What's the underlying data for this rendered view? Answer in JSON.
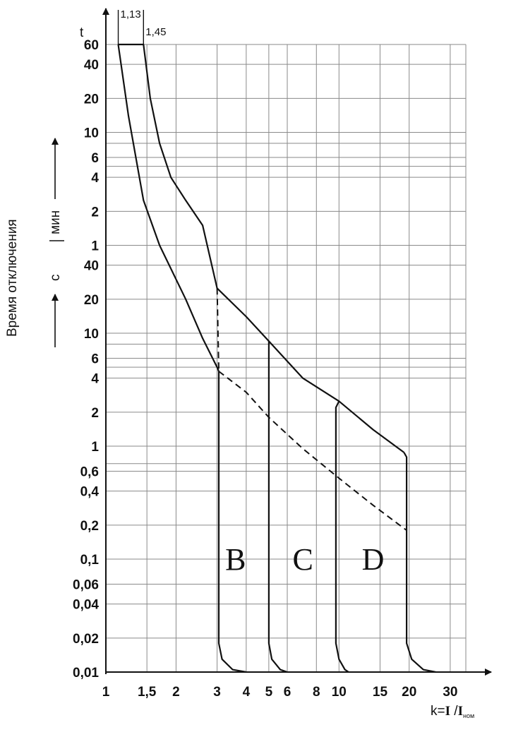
{
  "chart_data": {
    "type": "line",
    "title": "",
    "ylabel": "Время отключения",
    "ylabel_units": {
      "seconds": "с",
      "minutes": "мин"
    },
    "y_axis_symbol": "t",
    "xlabel_parts": {
      "prefix": "k=",
      "numerator": "I",
      "slash": " /",
      "denominator": "I",
      "denominator_sub": "ном"
    },
    "x_scale": "log",
    "y_scale": "log",
    "xlim": [
      1,
      35
    ],
    "ylim_seconds": [
      0.01,
      3600
    ],
    "grid": true,
    "x_ticks": [
      "1",
      "1,5",
      "2",
      "3",
      "4",
      "5",
      "6",
      "8",
      "10",
      "15",
      "20",
      "30"
    ],
    "x_tick_values": [
      1,
      1.5,
      2,
      3,
      4,
      5,
      6,
      8,
      10,
      15,
      20,
      30
    ],
    "y_ticks_seconds": [
      "0,01",
      "0,02",
      "0,04",
      "0,06",
      "0,1",
      "0,2",
      "0,4",
      "0,6",
      "1",
      "2",
      "4",
      "6",
      "10",
      "20",
      "40"
    ],
    "y_ticks_seconds_values": [
      0.01,
      0.02,
      0.04,
      0.06,
      0.1,
      0.2,
      0.4,
      0.6,
      1,
      2,
      4,
      6,
      10,
      20,
      40
    ],
    "y_ticks_minutes": [
      "1",
      "2",
      "4",
      "6",
      "10",
      "20",
      "40",
      "60"
    ],
    "y_ticks_minutes_values": [
      1,
      2,
      4,
      6,
      10,
      20,
      40,
      60
    ],
    "top_markers": [
      {
        "label": "1,13",
        "k": 1.13
      },
      {
        "label": "1,45",
        "k": 1.45
      }
    ],
    "annotations": [
      {
        "text": "B",
        "k": 3.6,
        "t_seconds": 0.1
      },
      {
        "text": "C",
        "k": 7.0,
        "t_seconds": 0.1
      },
      {
        "text": "D",
        "k": 14.0,
        "t_seconds": 0.1
      }
    ],
    "series": [
      {
        "style": "solid",
        "points": [
          [
            1.13,
            3600
          ],
          [
            1.45,
            3600
          ],
          [
            1.55,
            1200
          ],
          [
            1.7,
            480
          ],
          [
            1.9,
            240
          ],
          [
            2.2,
            150
          ],
          [
            2.6,
            90
          ],
          [
            3.0,
            25
          ],
          [
            4.0,
            14
          ],
          [
            5.0,
            8.5
          ],
          [
            7.0,
            4.0
          ],
          [
            10.0,
            2.5
          ],
          [
            14.0,
            1.4
          ],
          [
            19.0,
            0.88
          ]
        ]
      },
      {
        "style": "solid",
        "points": [
          [
            1.13,
            3600
          ],
          [
            1.25,
            840
          ],
          [
            1.45,
            150
          ],
          [
            1.7,
            60
          ],
          [
            2.2,
            20
          ],
          [
            2.6,
            9
          ],
          [
            3.0,
            5
          ],
          [
            3.05,
            4.6
          ]
        ]
      },
      {
        "style": "dashed",
        "points": [
          [
            3.0,
            25
          ],
          [
            3.05,
            4.6
          ]
        ]
      },
      {
        "style": "dashed",
        "points": [
          [
            3.05,
            4.6
          ],
          [
            4.0,
            3.0
          ],
          [
            5.0,
            1.8
          ],
          [
            7.0,
            0.95
          ],
          [
            10.0,
            0.52
          ],
          [
            14.0,
            0.3
          ],
          [
            19.5,
            0.18
          ]
        ]
      },
      {
        "style": "solid",
        "points": [
          [
            3.05,
            4.6
          ],
          [
            3.05,
            0.018
          ],
          [
            3.15,
            0.013
          ],
          [
            3.5,
            0.0105
          ],
          [
            4.0,
            0.01
          ]
        ]
      },
      {
        "style": "solid",
        "points": [
          [
            5.0,
            8.5
          ],
          [
            5.0,
            0.018
          ],
          [
            5.15,
            0.013
          ],
          [
            5.6,
            0.0105
          ],
          [
            6.0,
            0.01
          ]
        ]
      },
      {
        "style": "solid",
        "points": [
          [
            10.0,
            2.5
          ],
          [
            9.7,
            2.2
          ],
          [
            9.7,
            0.018
          ],
          [
            10.0,
            0.013
          ],
          [
            10.6,
            0.0105
          ],
          [
            11.0,
            0.01
          ]
        ]
      },
      {
        "style": "solid",
        "points": [
          [
            19.0,
            0.88
          ],
          [
            19.5,
            0.8
          ],
          [
            19.5,
            0.16
          ],
          [
            19.5,
            0.018
          ],
          [
            20.5,
            0.013
          ],
          [
            23.0,
            0.0105
          ],
          [
            26.0,
            0.01
          ]
        ]
      }
    ]
  }
}
